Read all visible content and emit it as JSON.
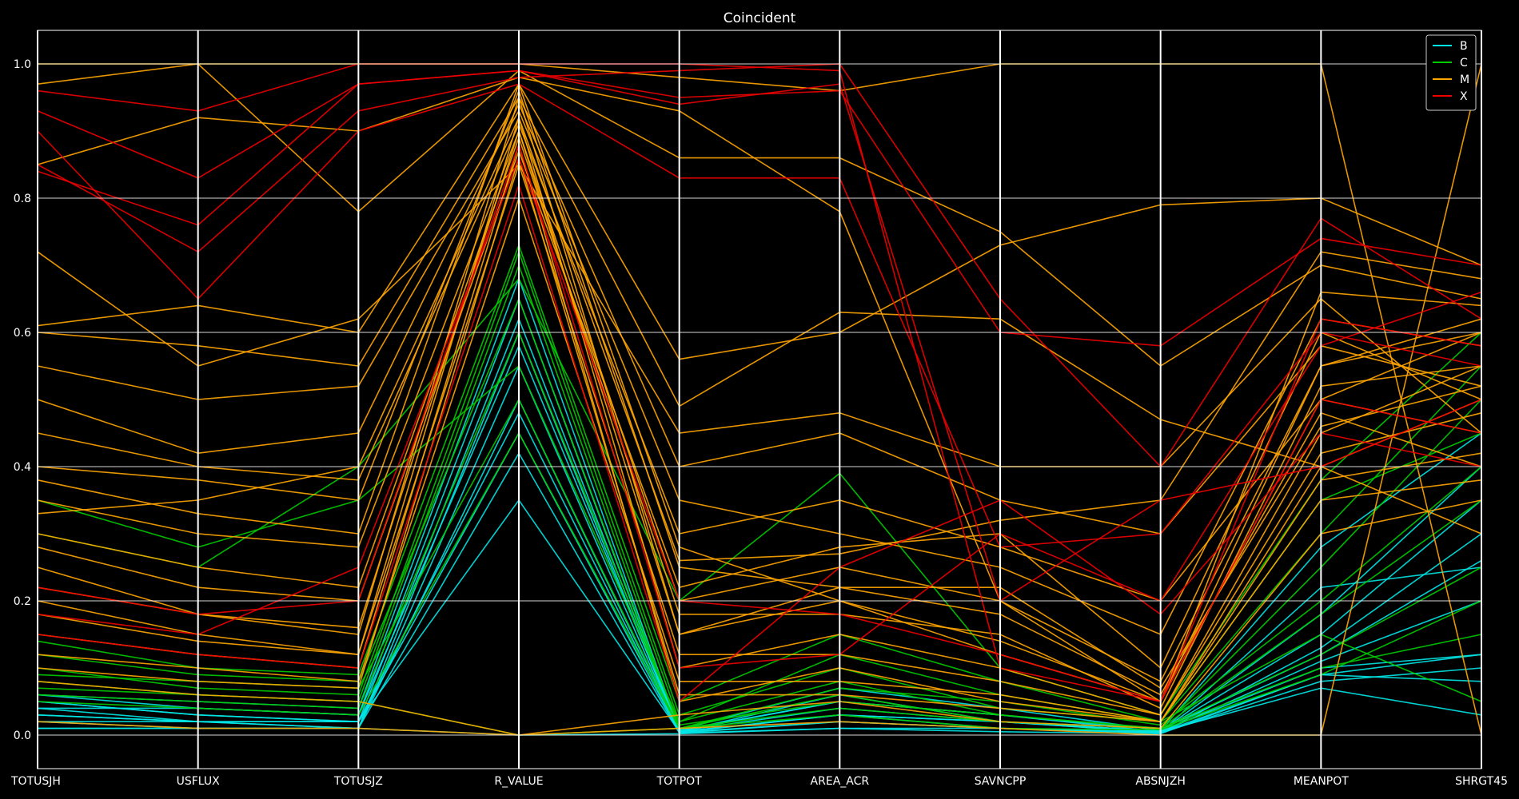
{
  "chart_data": {
    "type": "parallel-coordinates",
    "title": "Coincident",
    "axes": [
      "TOTUSJH",
      "USFLUX",
      "TOTUSJZ",
      "R_VALUE",
      "TOTPOT",
      "AREA_ACR",
      "SAVNCPP",
      "ABSNJZH",
      "MEANPOT",
      "SHRGT45"
    ],
    "ylim": [
      -0.05,
      1.05
    ],
    "yticks": [
      "0.0",
      "0.2",
      "0.4",
      "0.6",
      "0.8",
      "1.0"
    ],
    "grid": true,
    "legend": {
      "placement": "top-right",
      "entries": [
        "B",
        "C",
        "M",
        "X"
      ]
    },
    "colors": {
      "B": "#00e5e5",
      "C": "#00cc00",
      "M": "#ffa500",
      "X": "#ee0000",
      "background": "#000000",
      "foreground": "#ffffff"
    },
    "series": [
      {
        "name": "B",
        "lines": [
          [
            0.05,
            0.03,
            0.02,
            0.35,
            0.005,
            0.03,
            0.01,
            0.005,
            0.07,
            0.03
          ],
          [
            0.04,
            0.02,
            0.02,
            0.45,
            0.004,
            0.02,
            0.01,
            0.004,
            0.09,
            0.08
          ],
          [
            0.03,
            0.02,
            0.01,
            0.5,
            0.006,
            0.04,
            0.02,
            0.006,
            0.1,
            0.12
          ],
          [
            0.02,
            0.01,
            0.01,
            0.55,
            0.005,
            0.03,
            0.02,
            0.004,
            0.11,
            0.2
          ],
          [
            0.06,
            0.04,
            0.03,
            0.58,
            0.007,
            0.05,
            0.03,
            0.008,
            0.12,
            0.26
          ],
          [
            0.01,
            0.01,
            0.01,
            0.6,
            0.003,
            0.01,
            0.01,
            0.003,
            0.13,
            0.3
          ],
          [
            0.05,
            0.03,
            0.02,
            0.62,
            0.005,
            0.06,
            0.02,
            0.006,
            0.15,
            0.35
          ],
          [
            0.04,
            0.04,
            0.03,
            0.65,
            0.006,
            0.05,
            0.03,
            0.005,
            0.18,
            0.4
          ],
          [
            0.03,
            0.02,
            0.02,
            0.48,
            0.004,
            0.03,
            0.02,
            0.004,
            0.22,
            0.25
          ],
          [
            0.02,
            0.02,
            0.01,
            0.42,
            0.003,
            0.02,
            0.01,
            0.003,
            0.08,
            0.1
          ],
          [
            0.01,
            0.01,
            0.01,
            0.0,
            0.002,
            0.01,
            0.005,
            0.002,
            0.09,
            0.12
          ],
          [
            0.06,
            0.05,
            0.04,
            0.68,
            0.008,
            0.07,
            0.04,
            0.007,
            0.28,
            0.45
          ]
        ]
      },
      {
        "name": "C",
        "lines": [
          [
            0.08,
            0.06,
            0.05,
            0.7,
            0.02,
            0.08,
            0.03,
            0.01,
            0.25,
            0.5
          ],
          [
            0.1,
            0.07,
            0.06,
            0.72,
            0.03,
            0.1,
            0.04,
            0.02,
            0.3,
            0.55
          ],
          [
            0.12,
            0.09,
            0.08,
            0.65,
            0.01,
            0.07,
            0.05,
            0.015,
            0.2,
            0.4
          ],
          [
            0.06,
            0.05,
            0.04,
            0.6,
            0.015,
            0.05,
            0.03,
            0.01,
            0.18,
            0.35
          ],
          [
            0.3,
            0.25,
            0.4,
            0.68,
            0.2,
            0.39,
            0.1,
            0.03,
            0.38,
            0.6
          ],
          [
            0.35,
            0.28,
            0.35,
            0.55,
            0.02,
            0.12,
            0.06,
            0.02,
            0.15,
            0.05
          ],
          [
            0.09,
            0.08,
            0.07,
            0.5,
            0.01,
            0.06,
            0.02,
            0.01,
            0.12,
            0.25
          ],
          [
            0.07,
            0.06,
            0.05,
            0.0,
            0.01,
            0.04,
            0.02,
            0.01,
            0.1,
            0.15
          ],
          [
            0.14,
            0.1,
            0.09,
            0.73,
            0.05,
            0.15,
            0.08,
            0.02,
            0.35,
            0.45
          ],
          [
            0.05,
            0.04,
            0.03,
            0.45,
            0.01,
            0.03,
            0.01,
            0.008,
            0.09,
            0.2
          ]
        ]
      },
      {
        "name": "M",
        "lines": [
          [
            0.2,
            0.15,
            0.12,
            0.92,
            0.1,
            0.15,
            0.1,
            0.03,
            0.45,
            0.55
          ],
          [
            0.25,
            0.18,
            0.15,
            0.95,
            0.15,
            0.2,
            0.12,
            0.05,
            0.5,
            0.6
          ],
          [
            0.35,
            0.3,
            0.28,
            0.9,
            0.2,
            0.25,
            0.2,
            0.08,
            0.55,
            0.62
          ],
          [
            0.15,
            0.12,
            0.1,
            0.88,
            0.05,
            0.1,
            0.05,
            0.02,
            0.4,
            0.5
          ],
          [
            1.0,
            1.0,
            1.0,
            1.0,
            0.98,
            0.96,
            1.0,
            1.0,
            1.0,
            0.0
          ],
          [
            0.61,
            0.64,
            0.6,
            0.97,
            0.56,
            0.6,
            0.73,
            0.79,
            0.8,
            0.7
          ],
          [
            0.72,
            0.55,
            0.62,
            0.85,
            0.45,
            0.48,
            0.4,
            0.4,
            0.65,
            0.45
          ],
          [
            0.55,
            0.5,
            0.52,
            0.93,
            0.35,
            0.3,
            0.25,
            0.15,
            0.62,
            0.58
          ],
          [
            0.4,
            0.38,
            0.35,
            0.96,
            0.25,
            0.22,
            0.18,
            0.06,
            0.48,
            0.4
          ],
          [
            0.3,
            0.25,
            0.22,
            0.89,
            0.18,
            0.18,
            0.15,
            0.04,
            0.52,
            0.55
          ],
          [
            0.18,
            0.14,
            0.12,
            0.85,
            0.12,
            0.12,
            0.08,
            0.03,
            0.42,
            0.48
          ],
          [
            0.12,
            0.1,
            0.08,
            0.8,
            0.08,
            0.08,
            0.06,
            0.02,
            0.38,
            0.42
          ],
          [
            0.08,
            0.06,
            0.05,
            0.0,
            0.03,
            0.05,
            0.02,
            0.01,
            0.3,
            0.35
          ],
          [
            0.85,
            0.92,
            0.9,
            0.98,
            0.93,
            0.78,
            0.2,
            0.05,
            0.55,
            0.6
          ],
          [
            0.97,
            1.0,
            0.78,
            0.99,
            0.86,
            0.86,
            0.75,
            0.55,
            0.7,
            0.65
          ],
          [
            0.5,
            0.42,
            0.45,
            0.94,
            0.4,
            0.45,
            0.35,
            0.3,
            0.58,
            0.52
          ],
          [
            0.45,
            0.4,
            0.38,
            0.91,
            0.3,
            0.35,
            0.28,
            0.2,
            0.5,
            0.45
          ],
          [
            0.28,
            0.22,
            0.2,
            0.87,
            0.22,
            0.28,
            0.3,
            0.1,
            0.6,
            0.5
          ],
          [
            0.22,
            0.18,
            0.16,
            0.9,
            0.15,
            0.22,
            0.22,
            0.07,
            0.46,
            0.52
          ],
          [
            0.38,
            0.33,
            0.3,
            0.97,
            0.28,
            0.2,
            0.14,
            0.05,
            0.66,
            0.64
          ],
          [
            0.02,
            0.01,
            0.01,
            0.0,
            0.01,
            0.02,
            0.01,
            0.0,
            0.0,
            1.0
          ],
          [
            0.6,
            0.58,
            0.55,
            0.95,
            0.49,
            0.63,
            0.62,
            0.47,
            0.4,
            0.3
          ],
          [
            0.1,
            0.08,
            0.07,
            0.86,
            0.06,
            0.06,
            0.04,
            0.02,
            0.35,
            0.38
          ],
          [
            0.33,
            0.35,
            0.4,
            0.92,
            0.26,
            0.27,
            0.32,
            0.35,
            0.72,
            0.68
          ]
        ]
      },
      {
        "name": "X",
        "lines": [
          [
            0.93,
            0.83,
            0.97,
            0.99,
            0.95,
            0.96,
            0.6,
            0.58,
            0.74,
            0.7
          ],
          [
            0.9,
            0.65,
            0.9,
            0.97,
            0.83,
            0.83,
            0.28,
            0.3,
            0.6,
            0.55
          ],
          [
            0.85,
            0.72,
            0.93,
            0.98,
            0.99,
            1.0,
            0.65,
            0.4,
            0.77,
            0.62
          ],
          [
            0.96,
            0.93,
            1.0,
            1.0,
            1.0,
            0.99,
            0.1,
            0.05,
            0.5,
            0.45
          ],
          [
            0.22,
            0.18,
            0.2,
            0.88,
            0.1,
            0.12,
            0.3,
            0.2,
            0.58,
            0.66
          ],
          [
            0.15,
            0.12,
            0.1,
            0.82,
            0.05,
            0.25,
            0.35,
            0.18,
            0.45,
            0.4
          ],
          [
            0.18,
            0.15,
            0.25,
            0.86,
            0.2,
            0.18,
            0.12,
            0.05,
            0.62,
            0.58
          ],
          [
            0.84,
            0.76,
            0.97,
            0.99,
            0.94,
            0.97,
            0.2,
            0.35,
            0.4,
            0.5
          ]
        ]
      }
    ]
  }
}
